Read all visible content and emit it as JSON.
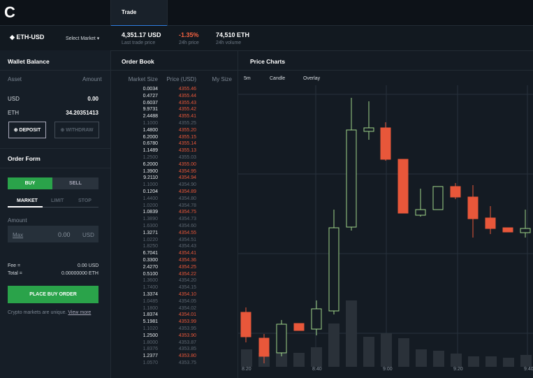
{
  "header": {
    "logo": "C",
    "tab": "Trade",
    "market": "ETH-USD",
    "select_market": "Select Market",
    "stats": [
      {
        "value": "4,351.17 USD",
        "label": "Last trade price"
      },
      {
        "value": "-1.35%",
        "label": "24h price"
      },
      {
        "value": "74,510 ETH",
        "label": "24h volume"
      }
    ]
  },
  "wallet": {
    "title": "Wallet Balance",
    "col_asset": "Asset",
    "col_amount": "Amount",
    "rows": [
      [
        "USD",
        "0.00"
      ],
      [
        "ETH",
        "34.20351413"
      ]
    ],
    "deposit": "DEPOSIT",
    "withdraw": "WITHDRAW"
  },
  "order_form": {
    "title": "Order Form",
    "buy": "BUY",
    "sell": "SELL",
    "tabs": [
      "MARKET",
      "LIMIT",
      "STOP"
    ],
    "amount_label": "Amount",
    "max": "Max",
    "amount_value": "0.00",
    "amount_unit": "USD",
    "fee_label": "Fee =",
    "fee_value": "0.00 USD",
    "total_label": "Total =",
    "total_value": "0.00000000 ETH",
    "place": "PLACE BUY ORDER",
    "note": "Crypto markets are unique.",
    "note_link": "View more"
  },
  "order_book": {
    "title": "Order Book",
    "columns": [
      "Market Size",
      "Price (USD)",
      "My Size"
    ],
    "rows": [
      [
        "0.0034",
        "4355.46"
      ],
      [
        "0.4727",
        "4355.44"
      ],
      [
        "0.6037",
        "4355.43"
      ],
      [
        "9.9731",
        "4355.42"
      ],
      [
        "2.4488",
        "4355.41"
      ],
      [
        "1.1000",
        "4355.25"
      ],
      [
        "1.4800",
        "4355.20"
      ],
      [
        "6.2000",
        "4355.15"
      ],
      [
        "0.6780",
        "4355.14"
      ],
      [
        "1.1489",
        "4355.13"
      ],
      [
        "1.2500",
        "4355.03"
      ],
      [
        "6.2000",
        "4355.00"
      ],
      [
        "1.3900",
        "4354.95"
      ],
      [
        "9.2110",
        "4354.94"
      ],
      [
        "1.1000",
        "4354.90"
      ],
      [
        "0.1204",
        "4354.89"
      ],
      [
        "1.4400",
        "4354.80"
      ],
      [
        "1.0200",
        "4354.78"
      ],
      [
        "1.0839",
        "4354.75"
      ],
      [
        "1.3890",
        "4354.73"
      ],
      [
        "1.6300",
        "4354.60"
      ],
      [
        "1.3271",
        "4354.55"
      ],
      [
        "1.0220",
        "4354.51"
      ],
      [
        "1.8250",
        "4354.43"
      ],
      [
        "6.7041",
        "4354.41"
      ],
      [
        "0.3300",
        "4354.36"
      ],
      [
        "2.4270",
        "4354.25"
      ],
      [
        "0.5100",
        "4354.22"
      ],
      [
        "1.3600",
        "4354.20"
      ],
      [
        "1.7400",
        "4354.15"
      ],
      [
        "1.3374",
        "4354.10"
      ],
      [
        "1.0485",
        "4354.05"
      ],
      [
        "1.1800",
        "4354.02"
      ],
      [
        "1.8374",
        "4354.01"
      ],
      [
        "5.1981",
        "4353.99"
      ],
      [
        "1.1020",
        "4353.95"
      ],
      [
        "1.2500",
        "4353.90"
      ],
      [
        "1.8000",
        "4353.87"
      ],
      [
        "1.8376",
        "4353.85"
      ],
      [
        "1.2377",
        "4353.80"
      ],
      [
        "1.0570",
        "4353.75"
      ]
    ]
  },
  "price_charts": {
    "title": "Price Charts",
    "controls": [
      "5m",
      "Candle",
      "Overlay"
    ],
    "times": [
      "8:20",
      "8:40",
      "9:00",
      "9:20",
      "9:40"
    ]
  }
}
